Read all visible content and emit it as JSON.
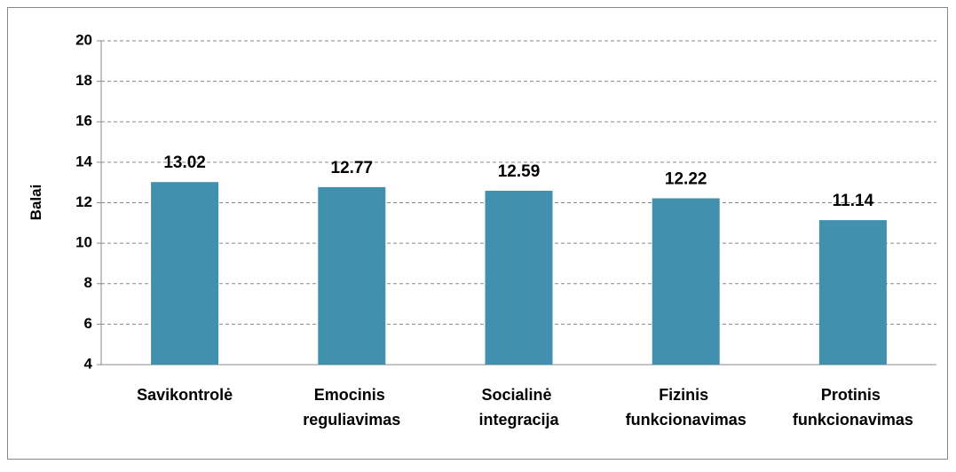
{
  "chart_data": {
    "type": "bar",
    "y_label": "Balai",
    "categories": [
      "Savikontrolė",
      "Emocinis reguliavimas",
      "Socialinė integracija",
      "Fizinis funkcionavimas",
      "Protinis funkcionavimas"
    ],
    "values": [
      13.02,
      12.77,
      12.59,
      12.22,
      11.14
    ],
    "color": "#4190ad",
    "ylim": [
      4,
      20
    ],
    "yticks": [
      4,
      6,
      8,
      10,
      12,
      14,
      16,
      18,
      20
    ],
    "grid": true
  }
}
